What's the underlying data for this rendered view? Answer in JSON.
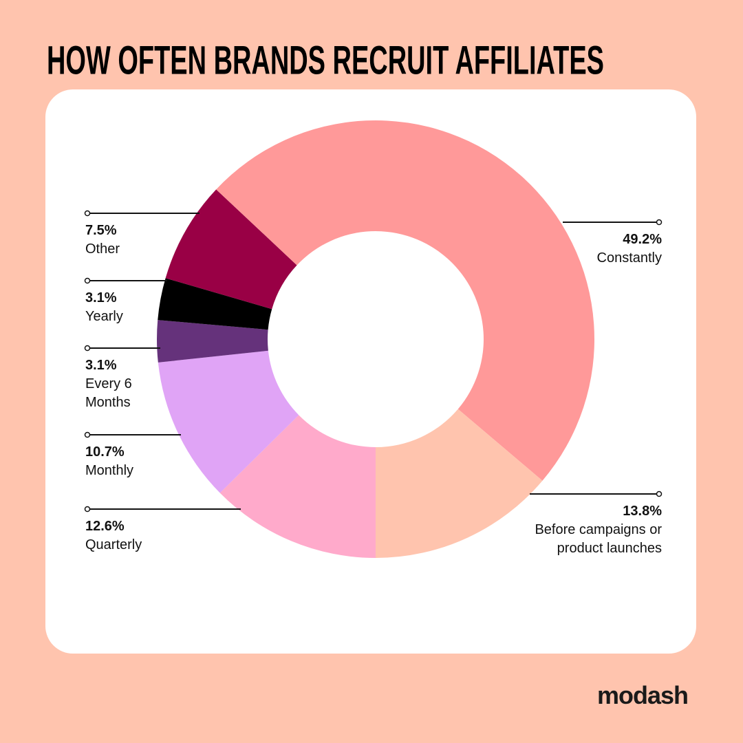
{
  "chart_data": {
    "type": "donut",
    "title": "HOW OFTEN BRANDS RECRUIT AFFILIATES",
    "categories": [
      "Quarterly",
      "Monthly",
      "Every 6 Months",
      "Yearly",
      "Other",
      "Constantly",
      "Before campaigns or product launches"
    ],
    "values": [
      12.6,
      10.7,
      3.1,
      3.1,
      7.5,
      49.2,
      13.8
    ],
    "value_labels": [
      "12.6%",
      "10.7%",
      "3.1%",
      "3.1%",
      "7.5%",
      "49.2%",
      "13.8%"
    ],
    "colors": [
      "#ffaacb",
      "#e0a4f6",
      "#65327b",
      "#000000",
      "#990045",
      "#ff9999",
      "#ffc4ae"
    ]
  },
  "brand": "modash"
}
